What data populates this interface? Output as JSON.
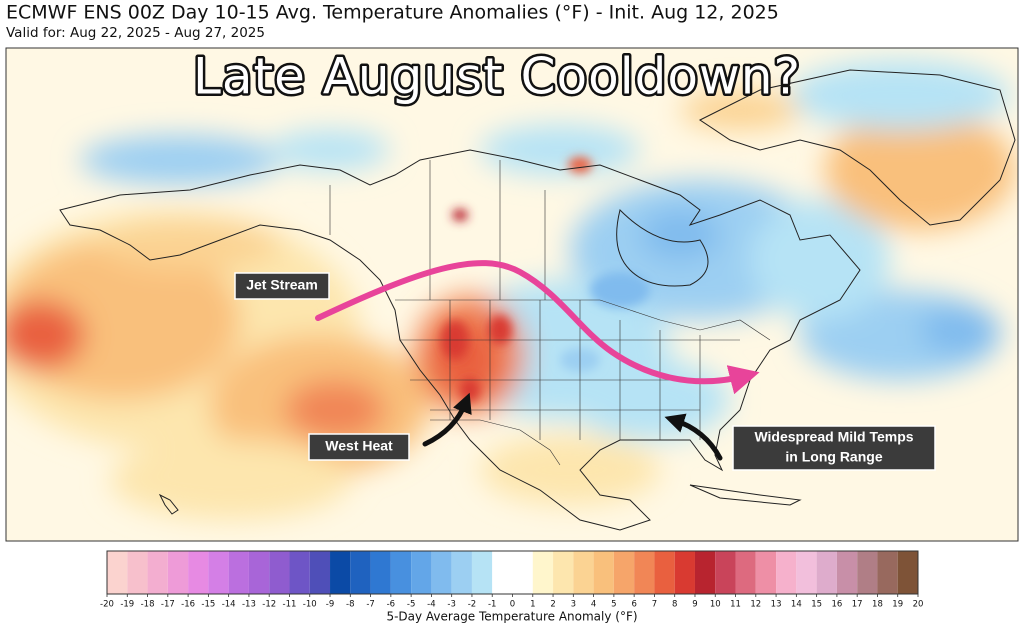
{
  "header": {
    "title": "ECMWF ENS 00Z Day 10-15 Avg. Temperature Anomalies (°F) - Init. Aug 12, 2025",
    "subtitle": "Valid for: Aug 22, 2025 - Aug 27, 2025"
  },
  "headline": "Late August Cooldown?",
  "annotations": [
    {
      "lines": [
        "Jet Stream"
      ]
    },
    {
      "lines": [
        "West Heat"
      ]
    },
    {
      "lines": [
        "Widespread Mild Temps",
        "in Long Range"
      ]
    }
  ],
  "colorbar": {
    "label": "5-Day Average Temperature Anomaly (°F)",
    "ticks": [
      -20,
      -19,
      -18,
      -17,
      -16,
      -15,
      -14,
      -13,
      -12,
      -11,
      -10,
      -9,
      -8,
      -7,
      -6,
      -5,
      -4,
      -3,
      -2,
      -1,
      0,
      1,
      2,
      3,
      4,
      5,
      6,
      7,
      8,
      9,
      10,
      11,
      12,
      13,
      14,
      15,
      16,
      17,
      18,
      19,
      20
    ],
    "colors": [
      "#fbd3cf",
      "#f7c0cc",
      "#f3aed0",
      "#ee9bd8",
      "#e78ae3",
      "#d47fe6",
      "#bb6fdf",
      "#a865d8",
      "#8f5ccf",
      "#6e55c6",
      "#4f4fb8",
      "#0b4aa6",
      "#1f62bf",
      "#2f78d2",
      "#4890df",
      "#63a6e8",
      "#80bbee",
      "#9ccff2",
      "#b6e3f5",
      "#ffffff",
      "#ffffff",
      "#fff6cc",
      "#fde6ae",
      "#fbd393",
      "#f9c07c",
      "#f6a56a",
      "#f18656",
      "#e9603f",
      "#d93a31",
      "#b8242f",
      "#c9445a",
      "#dd6a7f",
      "#ee8fa6",
      "#f6b1cc",
      "#f2bfdc",
      "#deaccc",
      "#c88fa8",
      "#b07e86",
      "#98695e",
      "#7e5337"
    ]
  }
}
